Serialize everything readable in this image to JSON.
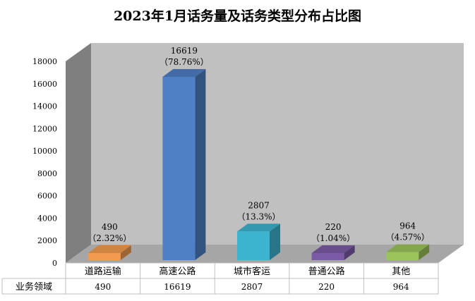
{
  "chart_data": {
    "type": "bar",
    "title": "2023年1月话务量及话务类型分布占比图",
    "categories": [
      "道路运输",
      "高速公路",
      "城市客运",
      "普通公路",
      "其他"
    ],
    "series": [
      {
        "name": "业务领域",
        "values": [
          490,
          16619,
          2807,
          220,
          964
        ]
      }
    ],
    "data_labels": [
      "490",
      "16619",
      "2807",
      "220",
      "964"
    ],
    "percent_labels": [
      "（2.32%）",
      "（78.76%）",
      "（13.3%）",
      "（1.04%）",
      "（4.57%）"
    ],
    "table_row_label": "业务领域",
    "table_values": [
      "490",
      "16619",
      "2807",
      "220",
      "964"
    ],
    "y_ticks": [
      "0",
      "2000",
      "4000",
      "6000",
      "8000",
      "10000",
      "12000",
      "14000",
      "16000",
      "18000"
    ],
    "ylim": [
      0,
      18000
    ],
    "grid": false,
    "colors": [
      "#F29B4E",
      "#4F7FC4",
      "#3DB4CF",
      "#7B5AA6",
      "#9BC45A"
    ],
    "wall_color": "#C0C0C0",
    "side_wall_color": "#7F7F7F",
    "floor_color": "#A6A6A6",
    "legend": "none"
  }
}
